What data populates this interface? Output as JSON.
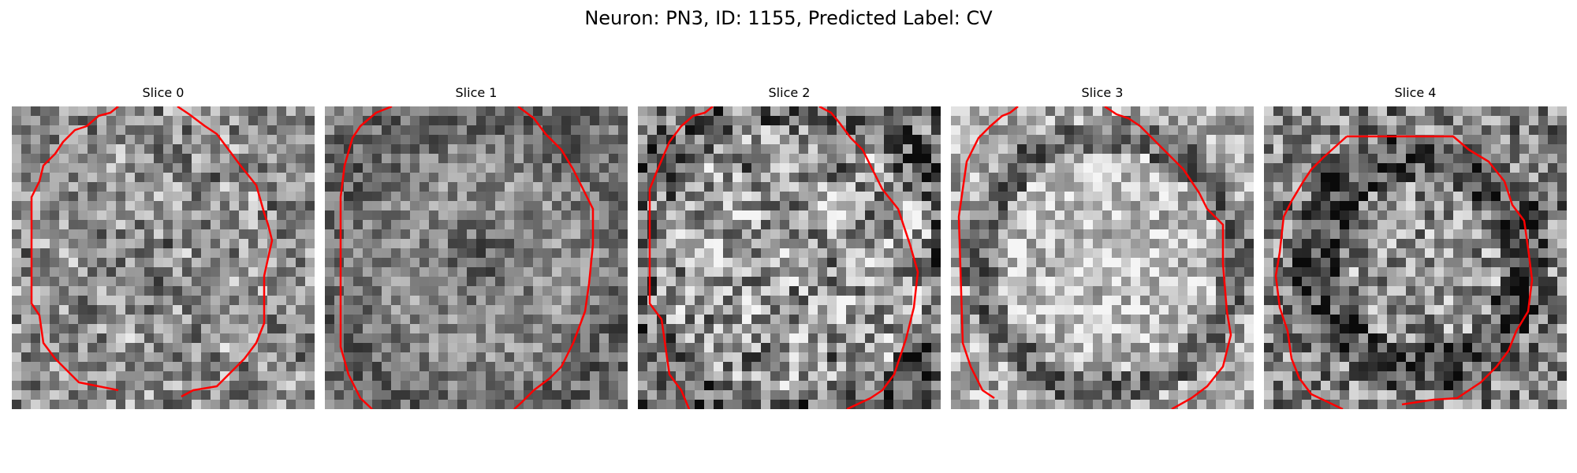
{
  "figure": {
    "title": "Neuron: PN3, ID: 1155, Predicted Label: CV"
  },
  "contour_color": "#ff0000",
  "colormap": "gray",
  "slices": [
    {
      "label": "Slice 0",
      "texture": "salt-pepper",
      "brightness": 0.55,
      "contrast": 0.55
    },
    {
      "label": "Slice 1",
      "texture": "fine-noise",
      "brightness": 0.48,
      "contrast": 0.45
    },
    {
      "label": "Slice 2",
      "texture": "bright-blobs",
      "brightness": 0.55,
      "contrast": 0.75
    },
    {
      "label": "Slice 3",
      "texture": "bright-cell",
      "brightness": 0.62,
      "contrast": 0.55
    },
    {
      "label": "Slice 4",
      "texture": "dark-ring",
      "brightness": 0.45,
      "contrast": 0.7
    }
  ]
}
